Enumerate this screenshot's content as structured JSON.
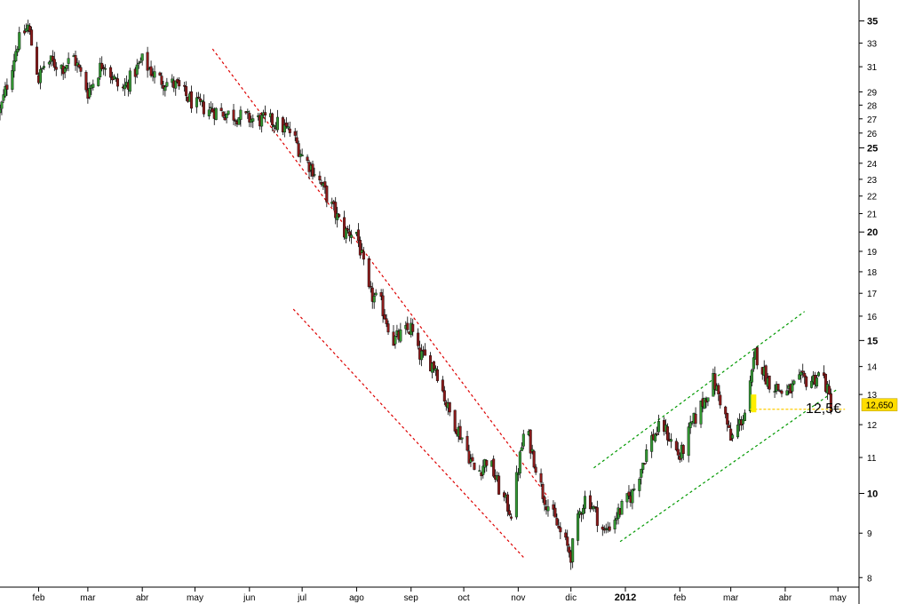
{
  "chart_data": {
    "type": "candlestick",
    "y_scale": "log",
    "ylim": [
      7.8,
      37
    ],
    "y_ticks": [
      8,
      9,
      10,
      11,
      12,
      13,
      14,
      15,
      16,
      17,
      18,
      19,
      20,
      21,
      22,
      23,
      24,
      25,
      26,
      27,
      28,
      29,
      31,
      33,
      35
    ],
    "y_ticks_major": [
      10,
      15,
      20,
      25,
      35
    ],
    "x_ticks": [
      {
        "label": "feb",
        "date": "2011-02-01",
        "major": false
      },
      {
        "label": "mar",
        "date": "2011-03-01",
        "major": false
      },
      {
        "label": "abr",
        "date": "2011-04-01",
        "major": false
      },
      {
        "label": "may",
        "date": "2011-05-01",
        "major": false
      },
      {
        "label": "jun",
        "date": "2011-06-01",
        "major": false
      },
      {
        "label": "jul",
        "date": "2011-07-01",
        "major": false
      },
      {
        "label": "ago",
        "date": "2011-08-01",
        "major": false
      },
      {
        "label": "sep",
        "date": "2011-09-01",
        "major": false
      },
      {
        "label": "oct",
        "date": "2011-10-01",
        "major": false
      },
      {
        "label": "nov",
        "date": "2011-11-01",
        "major": false
      },
      {
        "label": "dic",
        "date": "2011-12-01",
        "major": false
      },
      {
        "label": "2012",
        "date": "2012-01-01",
        "major": true
      },
      {
        "label": "feb",
        "date": "2012-02-01",
        "major": false
      },
      {
        "label": "mar",
        "date": "2012-03-01",
        "major": false
      },
      {
        "label": "abr",
        "date": "2012-04-01",
        "major": false
      },
      {
        "label": "may",
        "date": "2012-05-01",
        "major": false
      }
    ],
    "x_range": [
      "2011-01-10",
      "2012-05-13"
    ],
    "price_path": [
      [
        "2011-01-10",
        27.5
      ],
      [
        "2011-01-20",
        33
      ],
      [
        "2011-01-26",
        34.5
      ],
      [
        "2011-02-01",
        30
      ],
      [
        "2011-02-05",
        31.5
      ],
      [
        "2011-02-15",
        31
      ],
      [
        "2011-02-21",
        31.8
      ],
      [
        "2011-03-01",
        29
      ],
      [
        "2011-03-10",
        31.5
      ],
      [
        "2011-03-20",
        29
      ],
      [
        "2011-04-01",
        31.5
      ],
      [
        "2011-04-10",
        30
      ],
      [
        "2011-04-20",
        29.5
      ],
      [
        "2011-05-01",
        28
      ],
      [
        "2011-05-15",
        27.5
      ],
      [
        "2011-06-01",
        27
      ],
      [
        "2011-06-15",
        26.8
      ],
      [
        "2011-06-25",
        26
      ],
      [
        "2011-07-01",
        24.5
      ],
      [
        "2011-07-08",
        23.5
      ],
      [
        "2011-07-15",
        22
      ],
      [
        "2011-07-25",
        20
      ],
      [
        "2011-08-01",
        20
      ],
      [
        "2011-08-08",
        17
      ],
      [
        "2011-08-15",
        16.5
      ],
      [
        "2011-08-22",
        15
      ],
      [
        "2011-09-01",
        15.5
      ],
      [
        "2011-09-05",
        14.5
      ],
      [
        "2011-09-15",
        14
      ],
      [
        "2011-09-22",
        12.5
      ],
      [
        "2011-10-01",
        11.5
      ],
      [
        "2011-10-08",
        10.5
      ],
      [
        "2011-10-15",
        11
      ],
      [
        "2011-10-22",
        10
      ],
      [
        "2011-10-28",
        9.5
      ],
      [
        "2011-11-05",
        12
      ],
      [
        "2011-11-15",
        10
      ],
      [
        "2011-11-25",
        9
      ],
      [
        "2011-12-01",
        8.5
      ],
      [
        "2011-12-06",
        9.5
      ],
      [
        "2011-12-10",
        10
      ],
      [
        "2011-12-20",
        9
      ],
      [
        "2011-12-28",
        9.5
      ],
      [
        "2012-01-05",
        10
      ],
      [
        "2012-01-15",
        11.5
      ],
      [
        "2012-01-22",
        12
      ],
      [
        "2012-02-01",
        11
      ],
      [
        "2012-02-08",
        12
      ],
      [
        "2012-02-20",
        13.5
      ],
      [
        "2012-02-26",
        12.5
      ],
      [
        "2012-03-01",
        11.5
      ],
      [
        "2012-03-10",
        12.5
      ],
      [
        "2012-03-15",
        14.5
      ],
      [
        "2012-03-22",
        13.5
      ],
      [
        "2012-04-01",
        13
      ],
      [
        "2012-04-10",
        13.5
      ],
      [
        "2012-04-16",
        13.5
      ],
      [
        "2012-04-22",
        13.8
      ],
      [
        "2012-04-27",
        12.65
      ]
    ],
    "trendlines": [
      {
        "color": "#dd0000",
        "points": [
          [
            "2011-05-11",
            32.5
          ],
          [
            "2011-11-18",
            9.9
          ]
        ]
      },
      {
        "color": "#dd0000",
        "points": [
          [
            "2011-06-26",
            16.3
          ],
          [
            "2011-11-05",
            8.4
          ]
        ]
      },
      {
        "color": "#009900",
        "points": [
          [
            "2011-12-14",
            10.7
          ],
          [
            "2012-04-12",
            16.2
          ]
        ]
      },
      {
        "color": "#009900",
        "points": [
          [
            "2011-12-29",
            8.8
          ],
          [
            "2012-05-01",
            13.2
          ]
        ]
      }
    ],
    "hline": {
      "value": 12.5,
      "from": "2012-03-12",
      "to": "2012-05-05",
      "color": "#ffcc00"
    },
    "highlight": {
      "x": "2012-03-14",
      "from": 12.4,
      "to": 13.0,
      "color": "#ffee00"
    },
    "last_price": {
      "value": 12.65,
      "label": "12,650",
      "color": "#ffdd00"
    },
    "annotation": "12,5€",
    "colors": {
      "up": "#339933",
      "down": "#8b1a1a",
      "wick": "#000000"
    }
  }
}
